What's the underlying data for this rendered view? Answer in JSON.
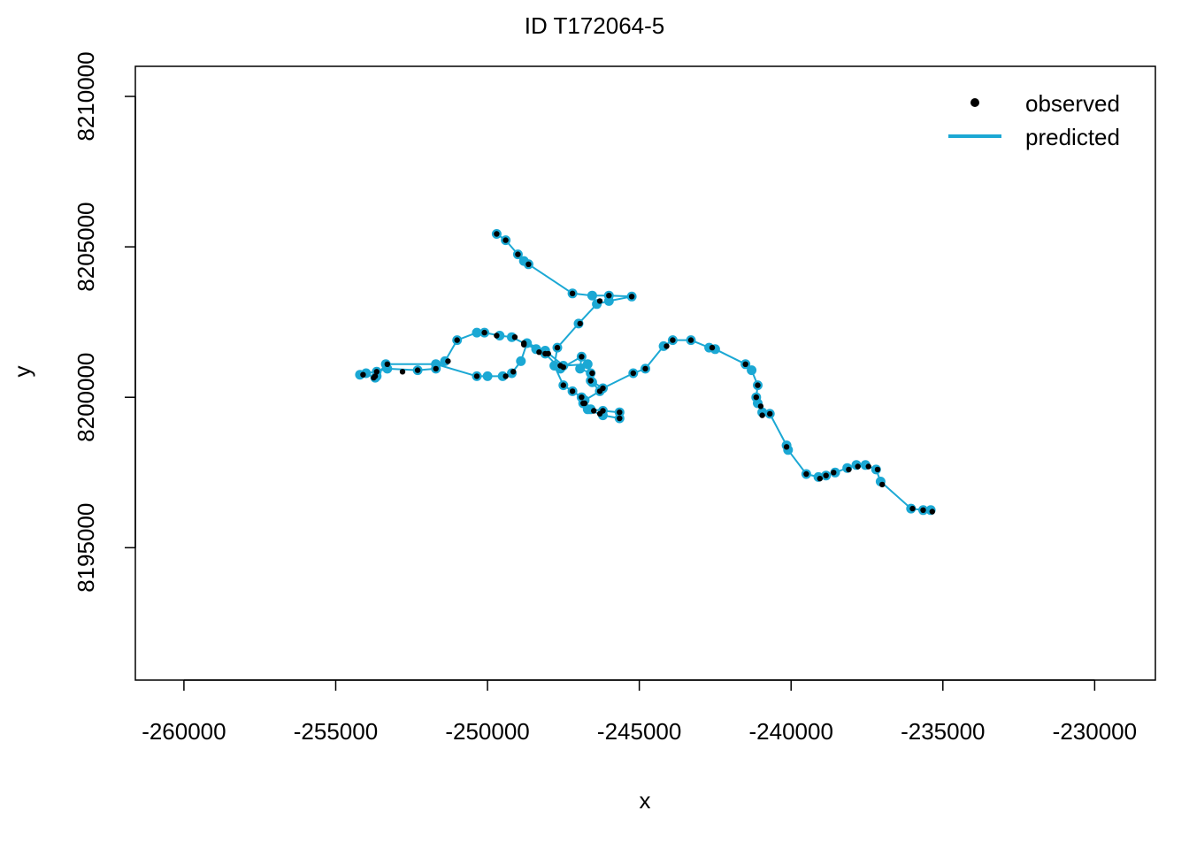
{
  "chart_data": {
    "type": "line",
    "title": "ID T172064-5",
    "xlabel": "x",
    "ylabel": "y",
    "xlim": [
      -261600,
      -228000
    ],
    "ylim": [
      8190600,
      8211000
    ],
    "x_ticks": [
      -260000,
      -255000,
      -250000,
      -245000,
      -240000,
      -235000,
      -230000
    ],
    "x_tick_labels": [
      "-260000",
      "-255000",
      "-250000",
      "-245000",
      "-240000",
      "-235000",
      "-230000"
    ],
    "y_ticks": [
      8195000,
      8200000,
      8205000,
      8210000
    ],
    "y_tick_labels": [
      "8195000",
      "8200000",
      "8205000",
      "8210000"
    ],
    "grid": false,
    "legend": {
      "position": "top-right",
      "entries": [
        {
          "label": "observed",
          "symbol": "point",
          "color": "#000000"
        },
        {
          "label": "predicted",
          "symbol": "line",
          "color": "#1BA8D4"
        }
      ]
    },
    "colors": {
      "observed": "#000000",
      "predicted": "#1BA8D4"
    },
    "series": [
      {
        "name": "predicted",
        "points": [
          [
            -249700,
            8205430
          ],
          [
            -249400,
            8205220
          ],
          [
            -249000,
            8204750
          ],
          [
            -248800,
            8204530
          ],
          [
            -248650,
            8204420
          ],
          [
            -247200,
            8203450
          ],
          [
            -246550,
            8203380
          ],
          [
            -246000,
            8203380
          ],
          [
            -245250,
            8203350
          ],
          [
            -246000,
            8203200
          ],
          [
            -246400,
            8203100
          ],
          [
            -247000,
            8202450
          ],
          [
            -247700,
            8201650
          ],
          [
            -247800,
            8201050
          ],
          [
            -247500,
            8200400
          ],
          [
            -247200,
            8200200
          ],
          [
            -246900,
            8200000
          ],
          [
            -246850,
            8199800
          ],
          [
            -246600,
            8199600
          ],
          [
            -246200,
            8199550
          ],
          [
            -245650,
            8199500
          ],
          [
            -245650,
            8199300
          ],
          [
            -246200,
            8199400
          ],
          [
            -246700,
            8199600
          ],
          [
            -246800,
            8199900
          ],
          [
            -246300,
            8200200
          ],
          [
            -246550,
            8200500
          ],
          [
            -246600,
            8200800
          ],
          [
            -246950,
            8200950
          ],
          [
            -246900,
            8201350
          ],
          [
            -247600,
            8200950
          ],
          [
            -248100,
            8201450
          ],
          [
            -248400,
            8201600
          ],
          [
            -249200,
            8202000
          ],
          [
            -249600,
            8202050
          ],
          [
            -250100,
            8202150
          ],
          [
            -250350,
            8202150
          ],
          [
            -251000,
            8201900
          ],
          [
            -251400,
            8201200
          ],
          [
            -251700,
            8200950
          ],
          [
            -252300,
            8200900
          ],
          [
            -253300,
            8200950
          ],
          [
            -253650,
            8200850
          ],
          [
            -254000,
            8200800
          ],
          [
            -254200,
            8200750
          ],
          [
            -253650,
            8200700
          ],
          [
            -253700,
            8200650
          ],
          [
            -253350,
            8201100
          ],
          [
            -251700,
            8201100
          ],
          [
            -250350,
            8200700
          ],
          [
            -250000,
            8200700
          ],
          [
            -249500,
            8200700
          ],
          [
            -249200,
            8200800
          ],
          [
            -248900,
            8201200
          ],
          [
            -248700,
            8201800
          ],
          [
            -248100,
            8201550
          ],
          [
            -247500,
            8201050
          ],
          [
            -246700,
            8201100
          ],
          [
            -246600,
            8200550
          ],
          [
            -246200,
            8200300
          ],
          [
            -245200,
            8200800
          ],
          [
            -244800,
            8200950
          ],
          [
            -244200,
            8201700
          ],
          [
            -243900,
            8201900
          ],
          [
            -243300,
            8201900
          ],
          [
            -242700,
            8201650
          ],
          [
            -242500,
            8201600
          ],
          [
            -241500,
            8201100
          ],
          [
            -241300,
            8200900
          ],
          [
            -241100,
            8200400
          ],
          [
            -241150,
            8200000
          ],
          [
            -241100,
            8199800
          ],
          [
            -240950,
            8199500
          ],
          [
            -240700,
            8199450
          ],
          [
            -240150,
            8198400
          ],
          [
            -240100,
            8198250
          ],
          [
            -239500,
            8197450
          ],
          [
            -239100,
            8197350
          ],
          [
            -238850,
            8197400
          ],
          [
            -238550,
            8197500
          ],
          [
            -238150,
            8197650
          ],
          [
            -237850,
            8197750
          ],
          [
            -237550,
            8197750
          ],
          [
            -237200,
            8197600
          ],
          [
            -237050,
            8197200
          ],
          [
            -236050,
            8196300
          ],
          [
            -235650,
            8196250
          ],
          [
            -235400,
            8196250
          ]
        ]
      },
      {
        "name": "observed",
        "points": [
          [
            -249700,
            8205430
          ],
          [
            -249400,
            8205220
          ],
          [
            -249000,
            8204750
          ],
          [
            -248650,
            8204420
          ],
          [
            -247200,
            8203450
          ],
          [
            -246300,
            8203200
          ],
          [
            -246000,
            8203380
          ],
          [
            -245250,
            8203350
          ],
          [
            -246950,
            8202450
          ],
          [
            -247700,
            8201650
          ],
          [
            -247600,
            8201050
          ],
          [
            -247500,
            8200400
          ],
          [
            -247200,
            8200200
          ],
          [
            -246900,
            8200000
          ],
          [
            -246850,
            8199800
          ],
          [
            -246300,
            8199450
          ],
          [
            -246200,
            8199550
          ],
          [
            -245650,
            8199500
          ],
          [
            -245650,
            8199300
          ],
          [
            -246500,
            8199550
          ],
          [
            -246800,
            8199800
          ],
          [
            -246300,
            8200200
          ],
          [
            -246550,
            8200800
          ],
          [
            -246900,
            8201350
          ],
          [
            -248100,
            8201450
          ],
          [
            -248300,
            8201500
          ],
          [
            -248800,
            8201800
          ],
          [
            -249100,
            8202000
          ],
          [
            -249700,
            8202050
          ],
          [
            -250100,
            8202150
          ],
          [
            -251000,
            8201900
          ],
          [
            -251300,
            8201200
          ],
          [
            -251700,
            8200950
          ],
          [
            -252300,
            8200900
          ],
          [
            -252800,
            8200850
          ],
          [
            -253300,
            8201100
          ],
          [
            -253650,
            8200850
          ],
          [
            -253700,
            8200700
          ],
          [
            -253750,
            8200650
          ],
          [
            -254100,
            8200750
          ],
          [
            -250350,
            8200700
          ],
          [
            -249400,
            8200700
          ],
          [
            -249150,
            8200850
          ],
          [
            -248800,
            8201750
          ],
          [
            -248000,
            8201450
          ],
          [
            -247500,
            8201000
          ],
          [
            -246600,
            8200550
          ],
          [
            -246200,
            8200300
          ],
          [
            -245200,
            8200800
          ],
          [
            -244800,
            8200950
          ],
          [
            -244100,
            8201700
          ],
          [
            -243900,
            8201900
          ],
          [
            -243300,
            8201900
          ],
          [
            -242600,
            8201650
          ],
          [
            -241500,
            8201100
          ],
          [
            -241100,
            8200400
          ],
          [
            -241150,
            8200000
          ],
          [
            -241000,
            8199700
          ],
          [
            -240950,
            8199400
          ],
          [
            -240700,
            8199450
          ],
          [
            -240150,
            8198350
          ],
          [
            -239500,
            8197450
          ],
          [
            -239050,
            8197300
          ],
          [
            -238850,
            8197400
          ],
          [
            -238600,
            8197500
          ],
          [
            -238100,
            8197600
          ],
          [
            -237800,
            8197700
          ],
          [
            -237450,
            8197700
          ],
          [
            -237150,
            8197600
          ],
          [
            -237000,
            8197100
          ],
          [
            -236000,
            8196300
          ],
          [
            -235650,
            8196250
          ],
          [
            -235350,
            8196200
          ]
        ]
      }
    ]
  }
}
